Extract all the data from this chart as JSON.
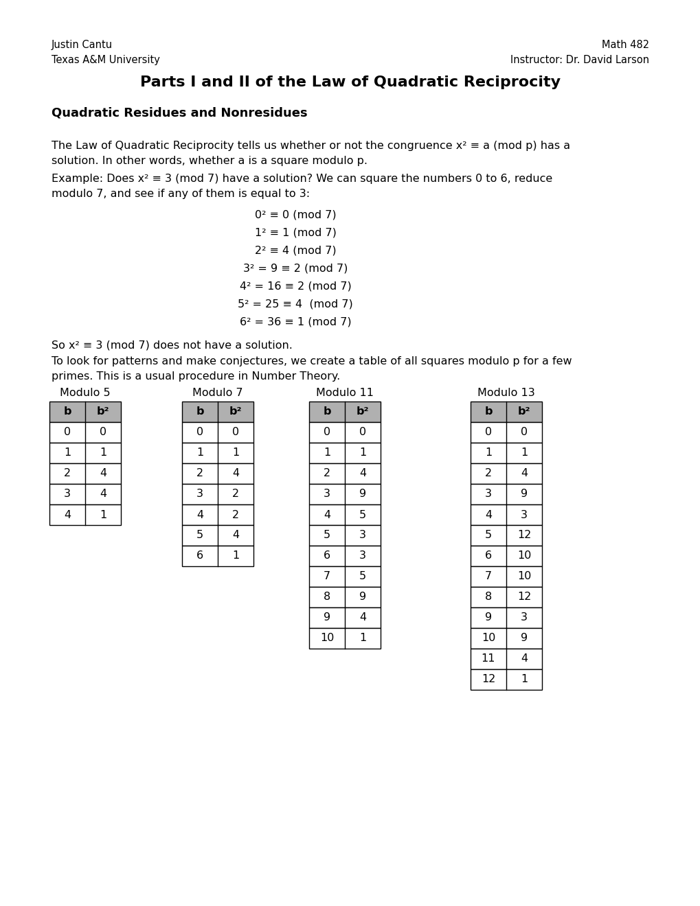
{
  "bg_color": "#ffffff",
  "header_left_1": "Justin Cantu",
  "header_left_2": "Texas A&M University",
  "header_right_1": "Math 482",
  "header_right_2": "Instructor: Dr. David Larson",
  "title": "Parts I and II of the Law of Quadratic Reciprocity",
  "section_heading": "Quadratic Residues and Nonresidues",
  "para1_line1": "The Law of Quadratic Reciprocity tells us whether or not the congruence x² ≡ a (mod p) has a",
  "para1_line2": "solution. In other words, whether a is a square modulo p.",
  "para2_line1": "Example: Does x² ≡ 3 (mod 7) have a solution? We can square the numbers 0 to 6, reduce",
  "para2_line2": "modulo 7, and see if any of them is equal to 3:",
  "equations": [
    "0² ≡ 0 (mod 7)",
    "1² ≡ 1 (mod 7)",
    "2² ≡ 4 (mod 7)",
    "3² = 9 ≡ 2 (mod 7)",
    "4² = 16 ≡ 2 (mod 7)",
    "5² = 25 ≡ 4  (mod 7)",
    "6² = 36 ≡ 1 (mod 7)"
  ],
  "para3": "So x² ≡ 3 (mod 7) does not have a solution.",
  "para4_line1": "To look for patterns and make conjectures, we create a table of all squares modulo p for a few",
  "para4_line2": "primes. This is a usual procedure in Number Theory.",
  "tables": [
    {
      "title": "Modulo 5",
      "rows": [
        [
          0,
          0
        ],
        [
          1,
          1
        ],
        [
          2,
          4
        ],
        [
          3,
          4
        ],
        [
          4,
          1
        ]
      ]
    },
    {
      "title": "Modulo 7",
      "rows": [
        [
          0,
          0
        ],
        [
          1,
          1
        ],
        [
          2,
          4
        ],
        [
          3,
          2
        ],
        [
          4,
          2
        ],
        [
          5,
          4
        ],
        [
          6,
          1
        ]
      ]
    },
    {
      "title": "Modulo 11",
      "rows": [
        [
          0,
          0
        ],
        [
          1,
          1
        ],
        [
          2,
          4
        ],
        [
          3,
          9
        ],
        [
          4,
          5
        ],
        [
          5,
          3
        ],
        [
          6,
          3
        ],
        [
          7,
          5
        ],
        [
          8,
          9
        ],
        [
          9,
          4
        ],
        [
          10,
          1
        ]
      ]
    },
    {
      "title": "Modulo 13",
      "rows": [
        [
          0,
          0
        ],
        [
          1,
          1
        ],
        [
          2,
          4
        ],
        [
          3,
          9
        ],
        [
          4,
          3
        ],
        [
          5,
          12
        ],
        [
          6,
          10
        ],
        [
          7,
          10
        ],
        [
          8,
          12
        ],
        [
          9,
          3
        ],
        [
          10,
          9
        ],
        [
          11,
          4
        ],
        [
          12,
          1
        ]
      ]
    }
  ],
  "header_gray": "#b0b0b0",
  "cell_white": "#ffffff",
  "figw": 10.2,
  "figh": 13.2,
  "dpi": 100
}
